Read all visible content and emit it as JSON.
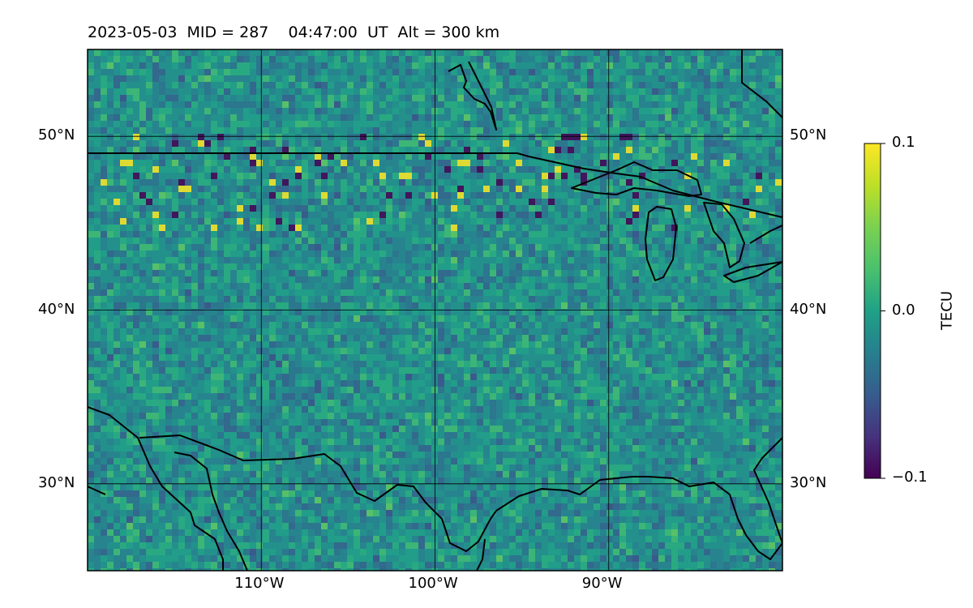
{
  "title": "2023-05-03  MID = 287    04:47:00  UT  Alt = 300 km",
  "map": {
    "lon_range": [
      -120,
      -80
    ],
    "lat_range": [
      25,
      55
    ],
    "lon_ticks": [
      {
        "value": -110,
        "label": "110°W"
      },
      {
        "value": -100,
        "label": "100°W"
      },
      {
        "value": -90,
        "label": "90°W"
      }
    ],
    "lat_ticks": [
      {
        "value": 50,
        "label": "50°N"
      },
      {
        "value": 40,
        "label": "40°N"
      },
      {
        "value": 30,
        "label": "30°N"
      }
    ],
    "gridlines": true,
    "field": "TEC perturbation",
    "colormap": "viridis"
  },
  "colorbar": {
    "label": "TECU",
    "min": -0.1,
    "max": 0.1,
    "ticks": [
      {
        "value": 0.1,
        "label": "0.1"
      },
      {
        "value": 0.0,
        "label": "0.0"
      },
      {
        "value": -0.1,
        "label": "−0.1"
      }
    ]
  },
  "colors": {
    "viridis_low": "#440154",
    "viridis_mid": "#21918c",
    "viridis_high": "#fde725",
    "coastline": "#000000"
  }
}
